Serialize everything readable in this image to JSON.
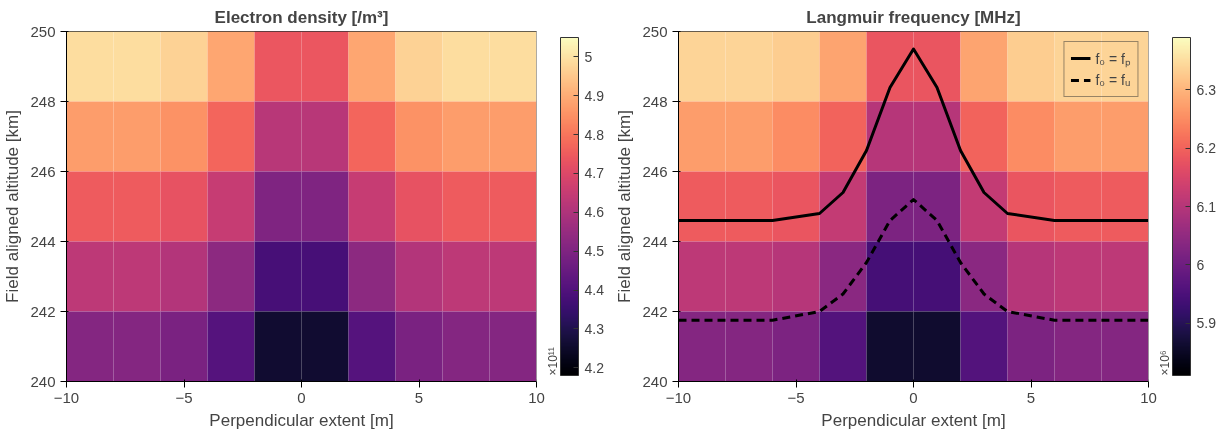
{
  "chart_data": [
    {
      "type": "heatmap",
      "title": "Electron density [/m³]",
      "xlabel": "Perpendicular extent [m]",
      "ylabel": "Field aligned altitude [km]",
      "clabel": "×10¹¹",
      "x": [
        -9,
        -7,
        -5,
        -3,
        -1,
        1,
        3,
        5,
        7,
        9
      ],
      "y": [
        249,
        247,
        245,
        243,
        241
      ],
      "cells": [
        [
          4.99,
          4.99,
          4.97,
          4.89,
          4.74,
          4.74,
          4.89,
          4.97,
          4.99,
          4.99
        ],
        [
          4.87,
          4.87,
          4.85,
          4.77,
          4.62,
          4.62,
          4.77,
          4.85,
          4.87,
          4.87
        ],
        [
          4.75,
          4.75,
          4.73,
          4.65,
          4.5,
          4.5,
          4.65,
          4.73,
          4.75,
          4.75
        ],
        [
          4.63,
          4.63,
          4.61,
          4.53,
          4.38,
          4.38,
          4.53,
          4.61,
          4.63,
          4.63
        ],
        [
          4.51,
          4.51,
          4.49,
          4.41,
          4.26,
          4.26,
          4.41,
          4.49,
          4.51,
          4.51
        ]
      ],
      "clim": [
        4.18,
        5.05
      ],
      "cticks": [
        4.2,
        4.3,
        4.4,
        4.5,
        4.6,
        4.7,
        4.8,
        4.9,
        5
      ],
      "xlim": [
        -10,
        10
      ],
      "xticks": [
        -10,
        -5,
        0,
        5,
        10
      ],
      "ylim": [
        240,
        250
      ],
      "yticks": [
        240,
        242,
        244,
        246,
        248,
        250
      ],
      "grid": false
    },
    {
      "type": "heatmap",
      "title": "Langmuir frequency [MHz]",
      "xlabel": "Perpendicular extent [m]",
      "ylabel": "Field aligned altitude [km]",
      "clabel": "×10⁶",
      "x": [
        -9,
        -7,
        -5,
        -3,
        -1,
        1,
        3,
        5,
        7,
        9
      ],
      "y": [
        249,
        247,
        245,
        243,
        241
      ],
      "cells": [
        [
          6.34,
          6.34,
          6.33,
          6.28,
          6.18,
          6.18,
          6.28,
          6.33,
          6.34,
          6.34
        ],
        [
          6.27,
          6.27,
          6.25,
          6.2,
          6.1,
          6.1,
          6.2,
          6.25,
          6.27,
          6.27
        ],
        [
          6.19,
          6.19,
          6.18,
          6.12,
          6.02,
          6.02,
          6.12,
          6.18,
          6.19,
          6.19
        ],
        [
          6.11,
          6.11,
          6.1,
          6.04,
          5.94,
          5.94,
          6.04,
          6.1,
          6.11,
          6.11
        ],
        [
          6.03,
          6.03,
          6.02,
          5.96,
          5.86,
          5.86,
          5.96,
          6.02,
          6.03,
          6.03
        ]
      ],
      "clim": [
        5.81,
        6.39
      ],
      "cticks": [
        5.9,
        6,
        6.1,
        6.2,
        6.3
      ],
      "series": [
        {
          "type": "line",
          "name": "f₀ = fₚ",
          "color": "#000000",
          "line_style": "solid",
          "x": [
            -10,
            -6,
            -4,
            -3,
            -2,
            -1,
            0,
            1,
            2,
            3,
            4,
            6,
            10
          ],
          "values": [
            244.6,
            244.6,
            244.8,
            245.4,
            246.6,
            248.4,
            249.5,
            248.4,
            246.6,
            245.4,
            244.8,
            244.6,
            244.6
          ]
        },
        {
          "type": "line",
          "name": "f₀ = fᵤ",
          "color": "#000000",
          "line_style": "dashed",
          "x": [
            -10,
            -6,
            -4,
            -3,
            -2,
            -1,
            0,
            1,
            2,
            3,
            4,
            6,
            10
          ],
          "values": [
            241.75,
            241.75,
            242.0,
            242.5,
            243.4,
            244.6,
            245.2,
            244.6,
            243.4,
            242.5,
            242.0,
            241.75,
            241.75
          ]
        }
      ],
      "legend": "top right",
      "xlim": [
        -10,
        10
      ],
      "xticks": [
        -10,
        -5,
        0,
        5,
        10
      ],
      "ylim": [
        240,
        250
      ],
      "yticks": [
        240,
        242,
        244,
        246,
        248,
        250
      ],
      "grid": false
    }
  ]
}
